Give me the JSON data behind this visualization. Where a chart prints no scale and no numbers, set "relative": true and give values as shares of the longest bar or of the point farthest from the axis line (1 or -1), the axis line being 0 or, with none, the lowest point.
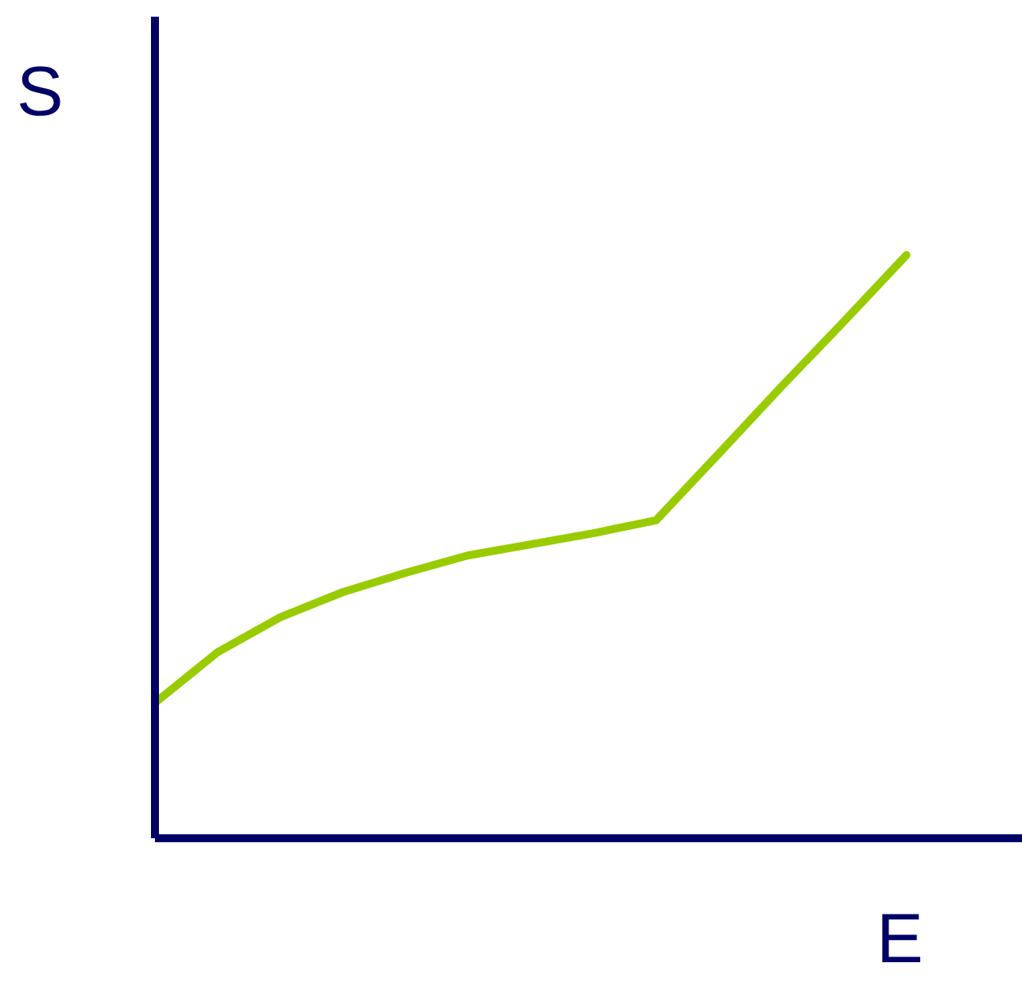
{
  "chart_data": {
    "type": "line",
    "relative": true,
    "xlabel": "E",
    "ylabel": "S",
    "categories": [
      null,
      null,
      null,
      null,
      null,
      null,
      null,
      null,
      null,
      null,
      null,
      null,
      null,
      null
    ],
    "series": [
      {
        "color": "#99cc00",
        "values": [
          0.232,
          0.319,
          0.379,
          0.422,
          0.455,
          0.485,
          0.504,
          0.523,
          0.545,
          0.659,
          0.774,
          0.886,
          1,
          null
        ]
      }
    ],
    "marker": "none",
    "line_style": "solid"
  }
}
